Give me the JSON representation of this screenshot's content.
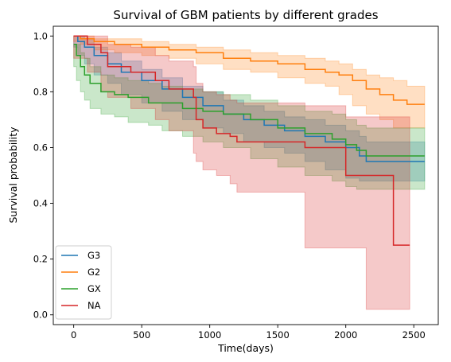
{
  "chart_data": {
    "type": "line",
    "title": "Survival of GBM patients by different grades",
    "xlabel": "Time(days)",
    "ylabel": "Survival probability",
    "xlim": [
      -150,
      2680
    ],
    "ylim": [
      -0.035,
      1.035
    ],
    "x_ticks": [
      0,
      500,
      1000,
      1500,
      2000,
      2500
    ],
    "y_ticks": [
      0.0,
      0.2,
      0.4,
      0.6,
      0.8,
      1.0
    ],
    "x_tick_labels": [
      "0",
      "500",
      "1000",
      "1500",
      "2000",
      "2500"
    ],
    "y_tick_labels": [
      "0.0",
      "0.2",
      "0.4",
      "0.6",
      "0.8",
      "1.0"
    ],
    "legend_position": "lower-left",
    "grid": false,
    "series": [
      {
        "name": "G3",
        "color": "#1f77b4",
        "x": [
          0,
          30,
          80,
          150,
          250,
          350,
          500,
          650,
          800,
          950,
          1100,
          1250,
          1400,
          1550,
          1700,
          1850,
          2000,
          2100,
          2150,
          2250,
          2580
        ],
        "y": [
          1.0,
          0.98,
          0.96,
          0.93,
          0.9,
          0.87,
          0.84,
          0.81,
          0.78,
          0.75,
          0.72,
          0.7,
          0.68,
          0.66,
          0.64,
          0.62,
          0.6,
          0.57,
          0.55,
          0.55,
          0.55
        ],
        "lower": [
          1.0,
          0.96,
          0.93,
          0.9,
          0.86,
          0.83,
          0.79,
          0.76,
          0.73,
          0.7,
          0.67,
          0.65,
          0.62,
          0.6,
          0.58,
          0.55,
          0.52,
          0.49,
          0.48,
          0.48,
          0.48
        ],
        "upper": [
          1.0,
          1.0,
          0.99,
          0.96,
          0.94,
          0.91,
          0.88,
          0.85,
          0.82,
          0.8,
          0.77,
          0.75,
          0.73,
          0.71,
          0.7,
          0.68,
          0.66,
          0.64,
          0.62,
          0.62,
          0.62
        ]
      },
      {
        "name": "G2",
        "color": "#ff7f0e",
        "x": [
          0,
          50,
          150,
          300,
          500,
          700,
          900,
          1100,
          1300,
          1500,
          1700,
          1850,
          1950,
          2050,
          2150,
          2250,
          2350,
          2450,
          2580
        ],
        "y": [
          1.0,
          0.99,
          0.98,
          0.97,
          0.96,
          0.95,
          0.94,
          0.92,
          0.91,
          0.9,
          0.88,
          0.87,
          0.86,
          0.84,
          0.81,
          0.79,
          0.77,
          0.755,
          0.755
        ],
        "lower": [
          1.0,
          0.98,
          0.97,
          0.95,
          0.94,
          0.93,
          0.92,
          0.9,
          0.88,
          0.87,
          0.85,
          0.83,
          0.82,
          0.79,
          0.75,
          0.72,
          0.7,
          0.67,
          0.67
        ],
        "upper": [
          1.0,
          1.0,
          0.99,
          0.99,
          0.98,
          0.97,
          0.96,
          0.95,
          0.94,
          0.93,
          0.92,
          0.91,
          0.9,
          0.88,
          0.86,
          0.85,
          0.84,
          0.82,
          0.82
        ]
      },
      {
        "name": "GX",
        "color": "#2ca02c",
        "x": [
          0,
          20,
          50,
          80,
          120,
          200,
          300,
          400,
          550,
          650,
          800,
          950,
          1100,
          1300,
          1500,
          1700,
          1900,
          2000,
          2080,
          2150,
          2580
        ],
        "y": [
          0.97,
          0.93,
          0.89,
          0.86,
          0.83,
          0.8,
          0.79,
          0.78,
          0.76,
          0.76,
          0.74,
          0.73,
          0.72,
          0.7,
          0.67,
          0.65,
          0.63,
          0.61,
          0.59,
          0.57,
          0.57
        ],
        "lower": [
          0.97,
          0.89,
          0.84,
          0.8,
          0.77,
          0.74,
          0.72,
          0.71,
          0.69,
          0.68,
          0.66,
          0.64,
          0.62,
          0.6,
          0.56,
          0.53,
          0.5,
          0.48,
          0.46,
          0.45,
          0.45
        ],
        "upper": [
          0.97,
          0.97,
          0.94,
          0.92,
          0.89,
          0.86,
          0.85,
          0.84,
          0.83,
          0.82,
          0.81,
          0.8,
          0.79,
          0.77,
          0.75,
          0.73,
          0.72,
          0.7,
          0.68,
          0.67,
          0.67
        ]
      },
      {
        "name": "NA",
        "color": "#d62728",
        "x": [
          0,
          100,
          200,
          250,
          420,
          600,
          700,
          880,
          900,
          950,
          1050,
          1150,
          1200,
          1700,
          2000,
          2150,
          2350,
          2470
        ],
        "y": [
          1.0,
          0.97,
          0.94,
          0.89,
          0.87,
          0.84,
          0.81,
          0.78,
          0.7,
          0.67,
          0.65,
          0.64,
          0.62,
          0.6,
          0.5,
          0.5,
          0.25,
          0.25
        ],
        "lower": [
          1.0,
          0.92,
          0.87,
          0.8,
          0.78,
          0.74,
          0.7,
          0.66,
          0.58,
          0.55,
          0.52,
          0.5,
          0.47,
          0.44,
          0.24,
          0.24,
          0.02,
          0.02
        ],
        "upper": [
          1.0,
          1.0,
          1.0,
          0.97,
          0.96,
          0.93,
          0.91,
          0.89,
          0.83,
          0.8,
          0.79,
          0.77,
          0.76,
          0.75,
          0.71,
          0.71,
          0.71,
          0.71
        ]
      }
    ]
  }
}
